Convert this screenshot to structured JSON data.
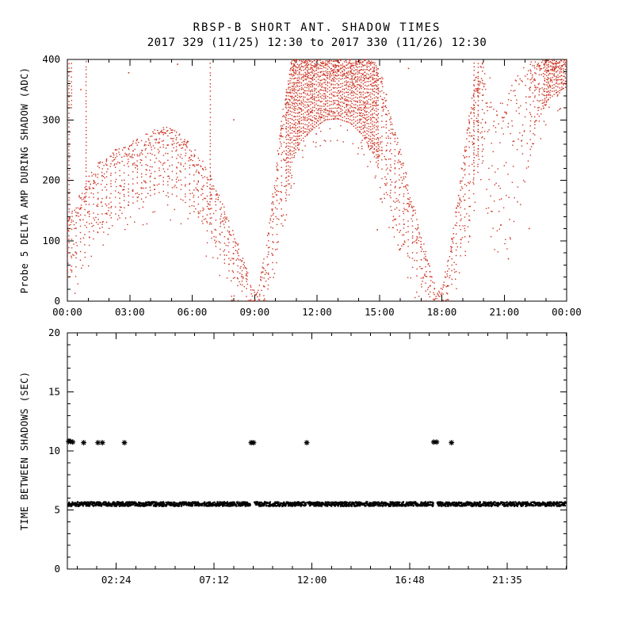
{
  "title": {
    "line1": "RBSP-B SHORT ANT. SHADOW TIMES",
    "line2": "2017 329 (11/25) 12:30 to 2017 330 (11/26) 12:30"
  },
  "colors": {
    "background": "#ffffff",
    "axis": "#000000",
    "top_points": "#cc3322",
    "bottom_points": "#000000"
  },
  "chart_data": [
    {
      "type": "scatter",
      "name": "probe5-delta-amp",
      "xlabel": "",
      "ylabel": "Probe 5 DELTA AMP DURING SHADOW (ADC)",
      "xlim": [
        0,
        24
      ],
      "ylim": [
        0,
        400
      ],
      "grid": false,
      "legend": "none",
      "marker": "dot",
      "xticks": [
        {
          "t": 0,
          "label": "00:00"
        },
        {
          "t": 3,
          "label": "03:00"
        },
        {
          "t": 6,
          "label": "06:00"
        },
        {
          "t": 9,
          "label": "09:00"
        },
        {
          "t": 12,
          "label": "12:00"
        },
        {
          "t": 15,
          "label": "15:00"
        },
        {
          "t": 18,
          "label": "18:00"
        },
        {
          "t": 21,
          "label": "21:00"
        },
        {
          "t": 24,
          "label": "00:00"
        }
      ],
      "x_minor_step": 1,
      "yticks": [
        {
          "v": 0,
          "label": "0"
        },
        {
          "v": 100,
          "label": "100"
        },
        {
          "v": 200,
          "label": "200"
        },
        {
          "v": 300,
          "label": "300"
        },
        {
          "v": 400,
          "label": "400"
        }
      ],
      "y_minor_step": 20,
      "envelope": [
        [
          0,
          40,
          130,
          2
        ],
        [
          0.5,
          60,
          170,
          2
        ],
        [
          1,
          90,
          205,
          2
        ],
        [
          1.5,
          115,
          230,
          2
        ],
        [
          2,
          135,
          245,
          2
        ],
        [
          2.5,
          150,
          255,
          2
        ],
        [
          3,
          160,
          262,
          2
        ],
        [
          3.5,
          168,
          272,
          2
        ],
        [
          4,
          175,
          282,
          2
        ],
        [
          4.6,
          182,
          290,
          2
        ],
        [
          5.2,
          175,
          283,
          2
        ],
        [
          5.8,
          160,
          265,
          2
        ],
        [
          6.4,
          135,
          240,
          2
        ],
        [
          7,
          100,
          200,
          2
        ],
        [
          7.6,
          60,
          150,
          2
        ],
        [
          8.2,
          25,
          95,
          2
        ],
        [
          8.6,
          8,
          55,
          2
        ],
        [
          8.9,
          0,
          22,
          2
        ],
        [
          9.1,
          0,
          12,
          2
        ],
        [
          9.4,
          5,
          60,
          2
        ],
        [
          9.7,
          30,
          130,
          2
        ],
        [
          10,
          70,
          220,
          2
        ],
        [
          10.4,
          150,
          330,
          2.5
        ],
        [
          10.8,
          230,
          400,
          3
        ],
        [
          11.2,
          265,
          400,
          3
        ],
        [
          11.8,
          285,
          400,
          3
        ],
        [
          12.4,
          300,
          400,
          3
        ],
        [
          13,
          302,
          400,
          3
        ],
        [
          13.6,
          295,
          400,
          3
        ],
        [
          14.2,
          275,
          400,
          3
        ],
        [
          14.7,
          245,
          400,
          3
        ],
        [
          15.1,
          205,
          375,
          2.5
        ],
        [
          15.6,
          150,
          305,
          2
        ],
        [
          16.1,
          100,
          240,
          2
        ],
        [
          16.6,
          55,
          165,
          2
        ],
        [
          17.1,
          22,
          100,
          2
        ],
        [
          17.5,
          4,
          45,
          2
        ],
        [
          17.8,
          0,
          14,
          2
        ],
        [
          18.1,
          2,
          35,
          2
        ],
        [
          18.4,
          20,
          90,
          2
        ],
        [
          18.8,
          60,
          180,
          2
        ],
        [
          19.2,
          120,
          280,
          2
        ],
        [
          19.6,
          190,
          375,
          2
        ],
        [
          19.9,
          240,
          400,
          2
        ],
        [
          20.2,
          170,
          385,
          1.2
        ],
        [
          20.6,
          110,
          330,
          1
        ],
        [
          21,
          120,
          345,
          1.2
        ],
        [
          21.5,
          150,
          365,
          1.3
        ],
        [
          22,
          200,
          390,
          1.4
        ],
        [
          22.5,
          280,
          400,
          2
        ],
        [
          23,
          330,
          400,
          2.8
        ],
        [
          23.5,
          345,
          400,
          3
        ],
        [
          24,
          355,
          400,
          3
        ]
      ],
      "spikes": [
        [
          0.08,
          80,
          400
        ],
        [
          0.2,
          320,
          400
        ],
        [
          0.9,
          160,
          400
        ],
        [
          6.87,
          130,
          400
        ],
        [
          19.55,
          210,
          400
        ],
        [
          19.75,
          240,
          400
        ]
      ],
      "strays": [
        [
          0.65,
          350
        ],
        [
          2.95,
          378
        ],
        [
          5.3,
          392
        ],
        [
          8.0,
          300
        ],
        [
          14.9,
          118
        ],
        [
          16.4,
          385
        ],
        [
          21.2,
          70
        ],
        [
          22.2,
          120
        ]
      ]
    },
    {
      "type": "scatter",
      "name": "time-between-shadows",
      "xlabel": "",
      "ylabel": "TIME BETWEEN SHADOWS (SEC)",
      "xlim": [
        0,
        24.5
      ],
      "ylim": [
        0,
        20
      ],
      "grid": false,
      "legend": "none",
      "marker": "asterisk",
      "xticks": [
        {
          "t": 2.4,
          "label": "02:24"
        },
        {
          "t": 7.2,
          "label": "07:12"
        },
        {
          "t": 12.0,
          "label": "12:00"
        },
        {
          "t": 16.8,
          "label": "16:48"
        },
        {
          "t": 21.583,
          "label": "21:35"
        }
      ],
      "x_minor_step": 0.96,
      "yticks": [
        {
          "v": 0,
          "label": "0"
        },
        {
          "v": 5,
          "label": "5"
        },
        {
          "v": 10,
          "label": "10"
        },
        {
          "v": 15,
          "label": "15"
        },
        {
          "v": 20,
          "label": "20"
        }
      ],
      "y_minor_step": 1,
      "band": {
        "y": 5.5,
        "half_width": 0.18,
        "t_start": 0.05,
        "t_end": 24.45,
        "gaps": [
          [
            9.0,
            9.17
          ],
          [
            11.72,
            11.79
          ],
          [
            17.96,
            18.15
          ],
          [
            18.82,
            18.88
          ]
        ]
      },
      "outliers": [
        [
          0.06,
          10.8
        ],
        [
          0.16,
          10.8
        ],
        [
          0.26,
          10.75
        ],
        [
          0.8,
          10.7
        ],
        [
          1.5,
          10.7
        ],
        [
          1.72,
          10.7
        ],
        [
          2.8,
          10.7
        ],
        [
          9.02,
          10.7
        ],
        [
          9.14,
          10.7
        ],
        [
          11.75,
          10.7
        ],
        [
          17.98,
          10.75
        ],
        [
          18.12,
          10.75
        ],
        [
          18.85,
          10.7
        ]
      ]
    }
  ]
}
